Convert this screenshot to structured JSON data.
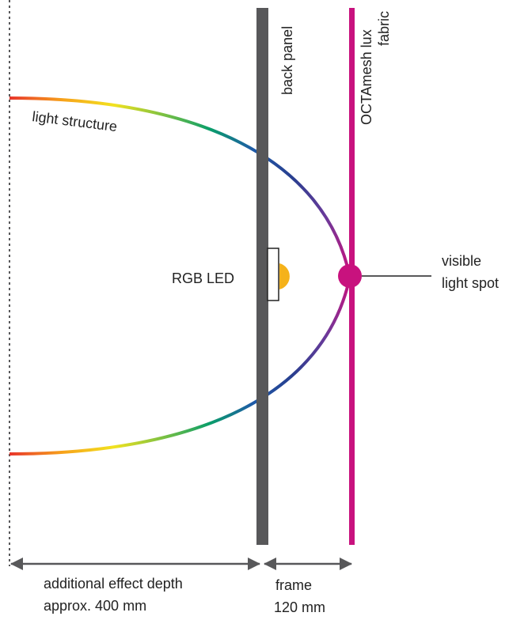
{
  "labels": {
    "back_panel": "back panel",
    "fabric_line1": "OCTAmesh lux",
    "fabric_line2": "fabric",
    "light_structure": "light structure",
    "rgb_led": "RGB LED",
    "light_spot_line1": "visible",
    "light_spot_line2": "light spot",
    "depth_line1": "additional effect depth",
    "depth_line2": "approx. 400 mm",
    "frame_line1": "frame",
    "frame_line2": "120 mm"
  },
  "colors": {
    "panel": "#58585a",
    "fabric": "#c8127e",
    "label_fabric": "#c8127e",
    "led": "#f5b21a",
    "dimension": "#58585a",
    "text": "#222222",
    "gradient": [
      "#e8352b",
      "#f7a21b",
      "#f2e21f",
      "#7cc142",
      "#0a9e6a",
      "#1e5aa8",
      "#283e8f",
      "#6a3a9a",
      "#c8127e"
    ]
  },
  "icons": {
    "dimension_arrow": "arrowhead-icon",
    "led": "semicircle-led-icon",
    "spot": "filled-circle-icon"
  }
}
